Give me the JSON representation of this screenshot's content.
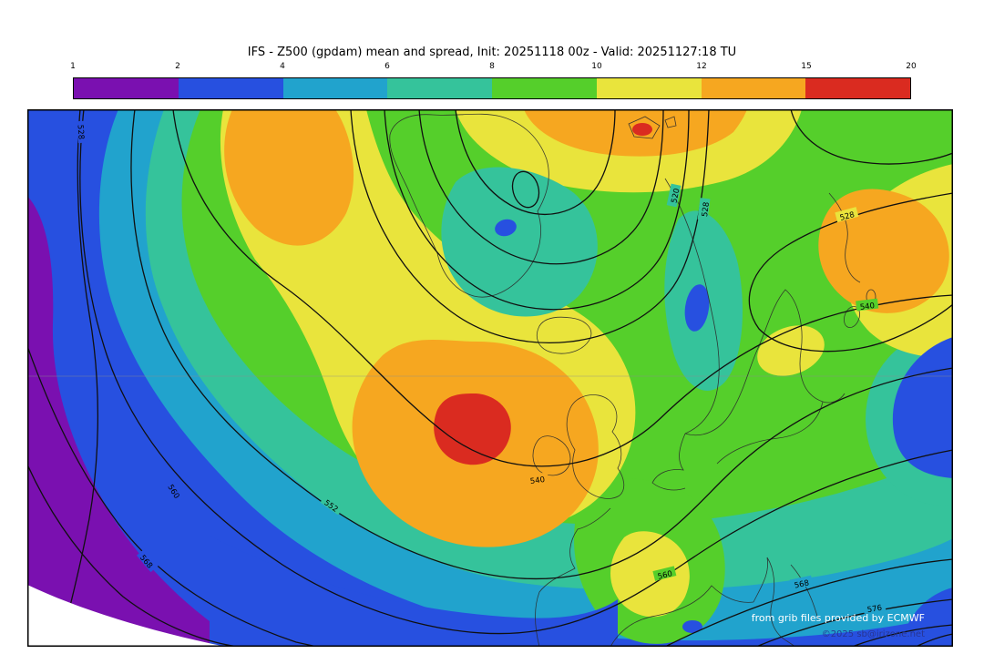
{
  "title": "IFS - Z500 (gpdam) mean and spread, Init: 20251118 00z - Valid: 20251127:18 TU",
  "colorbar": {
    "ticks": [
      "1",
      "2",
      "4",
      "6",
      "8",
      "10",
      "12",
      "15",
      "20"
    ],
    "colors": [
      "#7a10b0",
      "#2750e0",
      "#21a3cd",
      "#35c39b",
      "#55cf2b",
      "#e9e43c",
      "#f6a720",
      "#da2b20"
    ]
  },
  "map": {
    "contour_labels": [
      "528",
      "560",
      "520",
      "528",
      "540",
      "552",
      "560",
      "568",
      "540",
      "568",
      "576",
      "528"
    ]
  },
  "credits": {
    "provider": "from grib files provided by ECMWF",
    "copyright": "©2025 sb@irizone.net"
  },
  "chart_data": {
    "type": "heatmap",
    "title": "IFS - Z500 (gpdam) mean and spread",
    "init": "20251118 00z",
    "valid": "20251127:18 TU",
    "spread_levels": [
      1,
      2,
      4,
      6,
      8,
      10,
      12,
      15,
      20
    ],
    "spread_colors": [
      "#7a10b0",
      "#2750e0",
      "#21a3cd",
      "#35c39b",
      "#55cf2b",
      "#e9e43c",
      "#f6a720",
      "#da2b20"
    ],
    "mean_contour_values_visible": [
      520,
      528,
      540,
      552,
      560,
      568,
      576
    ]
  }
}
